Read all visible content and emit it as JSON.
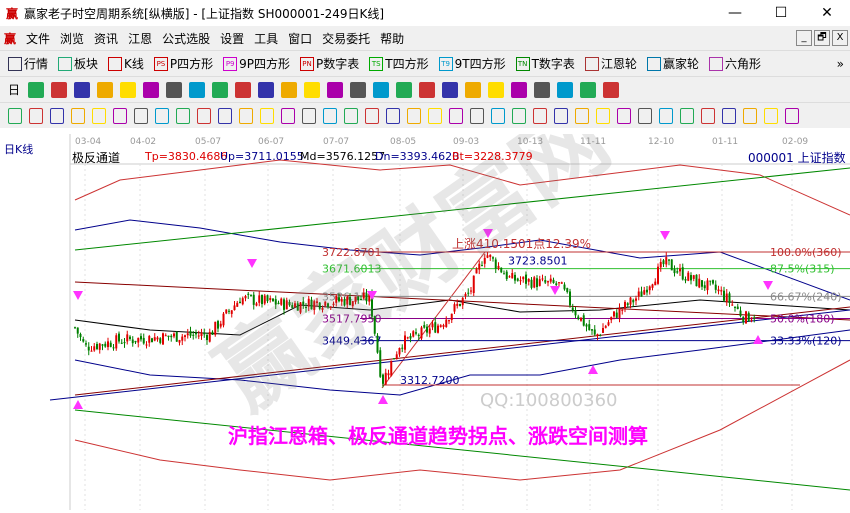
{
  "window": {
    "title": "赢家老子时空周期系统[纵横版] - [上证指数  SH000001-249日K线]",
    "minimize": "—",
    "maximize": "☐",
    "close": "✕"
  },
  "menu": {
    "items": [
      "文件",
      "浏览",
      "资讯",
      "江恩",
      "公式选股",
      "设置",
      "工具",
      "窗口",
      "交易委托",
      "帮助"
    ],
    "mdi": [
      "_",
      "🗗",
      "X"
    ]
  },
  "toolbar1": {
    "items": [
      "行情",
      "板块",
      "K线",
      "P四方形",
      "9P四方形",
      "P数字表",
      "T四方形",
      "9T四方形",
      "T数字表",
      "江恩轮",
      "赢家轮",
      "六角形"
    ],
    "badges": [
      "",
      "",
      "",
      "PS",
      "P9",
      "PN",
      "TS",
      "T9",
      "TN",
      "",
      "",
      "",
      ""
    ],
    "more": "»"
  },
  "toolbar2": {
    "period": "日"
  },
  "chart": {
    "period_label": "日K线",
    "indicator_name": "极反通道",
    "tp": "Tp=3830.4686",
    "up": "Up=3711.0155",
    "md": "Md=3576.1257",
    "dn": "Dn=3393.4620",
    "bt": "Bt=3228.3779",
    "symbol": "000001  上证指数",
    "dates": [
      "03-04",
      "04-02",
      "05-07",
      "06-07",
      "07-07",
      "08-05",
      "09-03",
      "10-13",
      "11-11",
      "12-10",
      "01-11",
      "02-09"
    ],
    "price_labels": [
      "3722.8701",
      "3671.6013",
      "3586.153",
      "3517.7950",
      "3449.4367",
      "3312.7200",
      "3723.8501"
    ],
    "fib_labels": [
      "100.0%(360)",
      "87.5%(315)",
      "66.67%(240)",
      "50.0%(180)",
      "33.33%(120)"
    ],
    "rise_label": "上涨410.1501点12.39%",
    "caption": "沪指江恩箱、极反通道趋势拐点、涨跌空间测算",
    "watermark": "QQ:100800360",
    "colors": {
      "up": "#e00000",
      "down": "#008000",
      "fib100": "#c03030",
      "fib875": "#30c030",
      "arrow": "#ff33ff",
      "caption": "#ff00ff"
    }
  }
}
